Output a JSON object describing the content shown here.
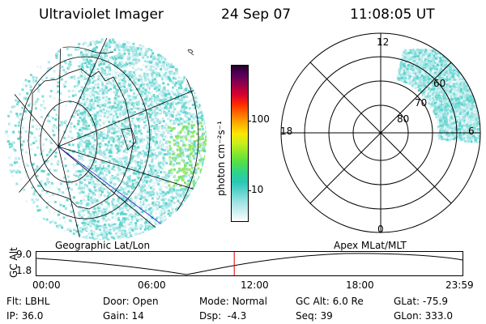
{
  "header": {
    "instrument": "Ultraviolet Imager",
    "date": "24 Sep 07",
    "time": "11:08:05 UT"
  },
  "geo_panel": {
    "label": "Geographic Lat/Lon"
  },
  "colorbar": {
    "unit_label": "photon cm⁻²s⁻¹",
    "ticks": [
      "100",
      "10"
    ],
    "colors": [
      "#fdfdfd",
      "#cdeef0",
      "#9be3e3",
      "#5fd4cd",
      "#29c7b8",
      "#2fd48a",
      "#4fe04a",
      "#8ae62a",
      "#c9ee20",
      "#ffe600",
      "#ffb000",
      "#ff7000",
      "#ff2a00",
      "#d8002e",
      "#9a0048",
      "#5a005a",
      "#24002c"
    ]
  },
  "polar_panel": {
    "label": "Apex MLat/MLT",
    "mlt_labels": {
      "top": "12",
      "left": "18",
      "right": "6",
      "bottom": "0"
    },
    "ring_labels": [
      "60",
      "70",
      "80"
    ]
  },
  "altitude_plot": {
    "ylabel": "GC Alt",
    "yticks": [
      "9.0",
      "1.8"
    ],
    "xticks": [
      "00:00",
      "06:00",
      "12:00",
      "18:00",
      "23:59"
    ],
    "marker_time": "11:08",
    "marker_color": "#e00000"
  },
  "status": {
    "filter_label": "Flt:",
    "filter_value": "LBHL",
    "door_label": "Door:",
    "door_value": "Open",
    "mode_label": "Mode:",
    "mode_value": "Normal",
    "gcalt_label": "GC Alt:",
    "gcalt_value": "6.0 Re",
    "glat_label": "GLat:",
    "glat_value": "-75.9",
    "ip_label": "IP:",
    "ip_value": "36.0",
    "gain_label": "Gain:",
    "gain_value": "14",
    "dsp_label": "Dsp:",
    "dsp_value": "-4.3",
    "seq_label": "Seq:",
    "seq_value": "39",
    "glon_label": "GLon:",
    "glon_value": "333.0"
  }
}
